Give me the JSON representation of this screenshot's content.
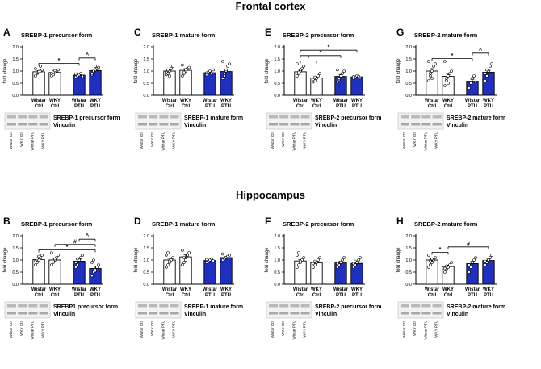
{
  "figure": {
    "region_titles": [
      "Frontal cortex",
      "Hippocampus"
    ],
    "blot_bottom_label": "Vinculin",
    "lane_labels": [
      "Wistar Ctrl",
      "WKY Ctrl",
      "Wistar PTU",
      "WKY PTU"
    ],
    "colors": {
      "ctrl": "#ffffff",
      "ptu": "#1f2fbf",
      "text": "#000000"
    }
  },
  "chart_data": [
    {
      "type": "bar",
      "panel": "A",
      "title": "SREBP-1 precursor form",
      "ylabel": "fold change",
      "ylim": [
        0,
        2.0
      ],
      "yticks": [
        "0.0",
        "0.5",
        "1.0",
        "1.5",
        "2.0"
      ],
      "categories": [
        [
          "Wistar",
          "Ctrl"
        ],
        [
          "WKY",
          "Ctrl"
        ],
        [
          "Wistar",
          "PTU"
        ],
        [
          "WKY",
          "PTU"
        ]
      ],
      "values": [
        0.97,
        0.94,
        0.83,
        1.02
      ],
      "errors": [
        0.05,
        0.05,
        0.04,
        0.06
      ],
      "points": [
        [
          0.8,
          0.9,
          0.95,
          1.0,
          1.05,
          1.1,
          0.92,
          0.98,
          1.2
        ],
        [
          0.8,
          0.85,
          0.95,
          1.0,
          1.05,
          0.9,
          0.97,
          1.02
        ],
        [
          0.75,
          0.8,
          0.85,
          0.9,
          0.78,
          0.88
        ],
        [
          0.85,
          0.95,
          1.05,
          1.1,
          1.15,
          0.9,
          1.0,
          1.2
        ]
      ],
      "significance": [
        {
          "from": 0,
          "to": 2,
          "symbol": "*"
        },
        {
          "from": 2,
          "to": 3,
          "symbol": "^"
        }
      ],
      "blot_label": "SREBP-1 precursor form"
    },
    {
      "type": "bar",
      "panel": "C",
      "title": "SREBP-1 mature form",
      "ylabel": "fold change",
      "ylim": [
        0,
        2.0
      ],
      "yticks": [
        "0.0",
        "0.5",
        "1.0",
        "1.5",
        "2.0"
      ],
      "categories": [
        [
          "Wistar",
          "Ctrl"
        ],
        [
          "WKY",
          "Ctrl"
        ],
        [
          "Wistar",
          "PTU"
        ],
        [
          "WKY",
          "PTU"
        ]
      ],
      "values": [
        1.0,
        1.03,
        0.93,
        0.98
      ],
      "errors": [
        0.06,
        0.07,
        0.05,
        0.1
      ],
      "points": [
        [
          0.85,
          0.9,
          1.0,
          1.1,
          1.2,
          0.95,
          1.05,
          0.8
        ],
        [
          0.8,
          0.9,
          1.0,
          1.1,
          1.15,
          1.25,
          0.95,
          1.05
        ],
        [
          0.85,
          0.95,
          1.0,
          0.9,
          1.05,
          0.92
        ],
        [
          0.7,
          0.8,
          1.0,
          1.2,
          1.3,
          1.4,
          0.9,
          1.05
        ]
      ],
      "significance": [],
      "blot_label": "SREBP-1 mature form"
    },
    {
      "type": "bar",
      "panel": "E",
      "title": "SREBP-2 precursor form",
      "ylabel": "fold change",
      "ylim": [
        0,
        2.0
      ],
      "yticks": [
        "0.0",
        "0.5",
        "1.0",
        "1.5",
        "2.0"
      ],
      "categories": [
        [
          "Wistar",
          "Ctrl"
        ],
        [
          "WKY",
          "Ctrl"
        ],
        [
          "Wistar",
          "PTU"
        ],
        [
          "WKY",
          "PTU"
        ]
      ],
      "values": [
        0.97,
        0.72,
        0.78,
        0.76
      ],
      "errors": [
        0.06,
        0.06,
        0.08,
        0.04
      ],
      "points": [
        [
          0.8,
          0.9,
          1.0,
          1.1,
          1.2,
          1.3,
          0.95,
          1.05
        ],
        [
          0.55,
          0.6,
          0.7,
          0.8,
          0.9,
          0.65,
          0.75
        ],
        [
          0.55,
          0.65,
          0.8,
          0.9,
          1.0,
          1.05,
          0.7
        ],
        [
          0.7,
          0.75,
          0.8,
          0.78,
          0.72,
          0.77
        ]
      ],
      "significance": [
        {
          "from": 0,
          "to": 1,
          "symbol": "*"
        },
        {
          "from": 0,
          "to": 2,
          "symbol": "*"
        },
        {
          "from": 0,
          "to": 3,
          "symbol": "*"
        }
      ],
      "blot_label": "SREBP-2 precursor form"
    },
    {
      "type": "bar",
      "panel": "G",
      "title": "SREBP-2 mature form",
      "ylabel": "fold change",
      "ylim": [
        0,
        2.0
      ],
      "yticks": [
        "0.0",
        "0.5",
        "1.0",
        "1.5",
        "2.0"
      ],
      "categories": [
        [
          "Wistar",
          "Ctrl"
        ],
        [
          "WKY",
          "Ctrl"
        ],
        [
          "Wistar",
          "PTU"
        ],
        [
          "WKY",
          "PTU"
        ]
      ],
      "values": [
        1.0,
        0.78,
        0.58,
        0.95
      ],
      "errors": [
        0.1,
        0.09,
        0.08,
        0.08
      ],
      "points": [
        [
          0.6,
          0.8,
          1.0,
          1.2,
          1.3,
          1.4,
          0.9,
          0.7
        ],
        [
          0.4,
          0.6,
          0.8,
          0.9,
          1.0,
          1.4,
          0.7,
          0.5
        ],
        [
          0.3,
          0.5,
          0.7,
          0.8,
          0.55
        ],
        [
          0.6,
          0.8,
          1.0,
          1.2,
          1.3,
          0.9,
          1.05
        ]
      ],
      "significance": [
        {
          "from": 0,
          "to": 2,
          "symbol": "*"
        },
        {
          "from": 2,
          "to": 3,
          "symbol": "^"
        }
      ],
      "blot_label": "SREBP-2 mature form"
    },
    {
      "type": "bar",
      "panel": "B",
      "title": "SREBP-1 precursor form",
      "ylabel": "fold change",
      "ylim": [
        0,
        2.0
      ],
      "yticks": [
        "0.0",
        "0.5",
        "1.0",
        "1.5",
        "2.0"
      ],
      "categories": [
        [
          "Wistar",
          "Ctrl"
        ],
        [
          "WKY",
          "Ctrl"
        ],
        [
          "Wistar",
          "PTU"
        ],
        [
          "WKY",
          "PTU"
        ]
      ],
      "values": [
        1.02,
        1.0,
        0.95,
        0.65
      ],
      "errors": [
        0.06,
        0.07,
        0.08,
        0.1
      ],
      "points": [
        [
          0.8,
          0.9,
          1.0,
          1.1,
          1.2,
          0.95,
          1.05,
          1.15
        ],
        [
          0.8,
          0.9,
          1.0,
          1.1,
          1.2,
          1.3,
          0.95,
          1.05
        ],
        [
          0.7,
          0.8,
          1.0,
          1.1,
          1.2,
          0.9,
          1.05
        ],
        [
          0.35,
          0.5,
          0.6,
          0.7,
          0.8,
          0.9,
          1.0,
          0.55
        ]
      ],
      "significance": [
        {
          "from": 0,
          "to": 3,
          "symbol": "*"
        },
        {
          "from": 1,
          "to": 3,
          "symbol": "#"
        },
        {
          "from": 2,
          "to": 3,
          "symbol": "^"
        }
      ],
      "blot_label": "SREBP1 precursor form"
    },
    {
      "type": "bar",
      "panel": "D",
      "title": "SREBP-1 mature form",
      "ylabel": "fold change",
      "ylim": [
        0,
        2.0
      ],
      "yticks": [
        "0.0",
        "0.5",
        "1.0",
        "1.5",
        "2.0"
      ],
      "categories": [
        [
          "Wistar",
          "Ctrl"
        ],
        [
          "WKY",
          "Ctrl"
        ],
        [
          "Wistar",
          "PTU"
        ],
        [
          "WKY",
          "PTU"
        ]
      ],
      "values": [
        1.0,
        1.13,
        0.98,
        1.1
      ],
      "errors": [
        0.07,
        0.08,
        0.04,
        0.04
      ],
      "points": [
        [
          0.7,
          0.8,
          0.9,
          1.0,
          1.1,
          1.2,
          1.3,
          0.95
        ],
        [
          0.8,
          0.9,
          1.0,
          1.2,
          1.3,
          1.4,
          1.1
        ],
        [
          0.9,
          0.95,
          1.0,
          1.05,
          0.97,
          1.02
        ],
        [
          1.0,
          1.05,
          1.1,
          1.15,
          1.2,
          1.25
        ]
      ],
      "significance": [],
      "blot_label": "SREBP-1 mature form"
    },
    {
      "type": "bar",
      "panel": "F",
      "title": "SREBP-2 precursor form",
      "ylabel": "fold change",
      "ylim": [
        0,
        2.0
      ],
      "yticks": [
        "0.0",
        "0.5",
        "1.0",
        "1.5",
        "2.0"
      ],
      "categories": [
        [
          "Wistar",
          "Ctrl"
        ],
        [
          "WKY",
          "Ctrl"
        ],
        [
          "Wistar",
          "PTU"
        ],
        [
          "WKY",
          "PTU"
        ]
      ],
      "values": [
        0.96,
        0.88,
        0.88,
        0.86
      ],
      "errors": [
        0.06,
        0.05,
        0.06,
        0.06
      ],
      "points": [
        [
          0.7,
          0.8,
          0.9,
          1.0,
          1.1,
          1.2,
          1.3,
          0.95
        ],
        [
          0.7,
          0.8,
          0.9,
          1.0,
          1.1,
          0.85,
          0.95
        ],
        [
          0.7,
          0.8,
          0.9,
          1.0,
          1.1,
          0.85
        ],
        [
          0.7,
          0.8,
          0.9,
          1.0,
          1.1,
          0.85,
          0.95
        ]
      ],
      "significance": [],
      "blot_label": "SREBP-2 precursor form"
    },
    {
      "type": "bar",
      "panel": "H",
      "title": "SREBP-2 mature form",
      "ylabel": "fold change",
      "ylim": [
        0,
        2.0
      ],
      "yticks": [
        "0.0",
        "0.5",
        "1.0",
        "1.5",
        "2.0"
      ],
      "categories": [
        [
          "Wistar",
          "Ctrl"
        ],
        [
          "WKY",
          "Ctrl"
        ],
        [
          "Wistar",
          "PTU"
        ],
        [
          "WKY",
          "PTU"
        ]
      ],
      "values": [
        1.0,
        0.73,
        0.85,
        0.98
      ],
      "errors": [
        0.06,
        0.06,
        0.09,
        0.06
      ],
      "points": [
        [
          0.7,
          0.8,
          0.9,
          1.0,
          1.1,
          1.2,
          0.95,
          1.05
        ],
        [
          0.5,
          0.6,
          0.7,
          0.8,
          0.9,
          0.65,
          0.75
        ],
        [
          0.5,
          0.7,
          0.9,
          1.0,
          1.1,
          0.8
        ],
        [
          0.8,
          0.9,
          1.0,
          1.1,
          1.2,
          0.95
        ]
      ],
      "significance": [
        {
          "from": 0,
          "to": 1,
          "symbol": "*"
        },
        {
          "from": 1,
          "to": 3,
          "symbol": "#"
        }
      ],
      "blot_label": "SREBP-2 mature form"
    }
  ]
}
